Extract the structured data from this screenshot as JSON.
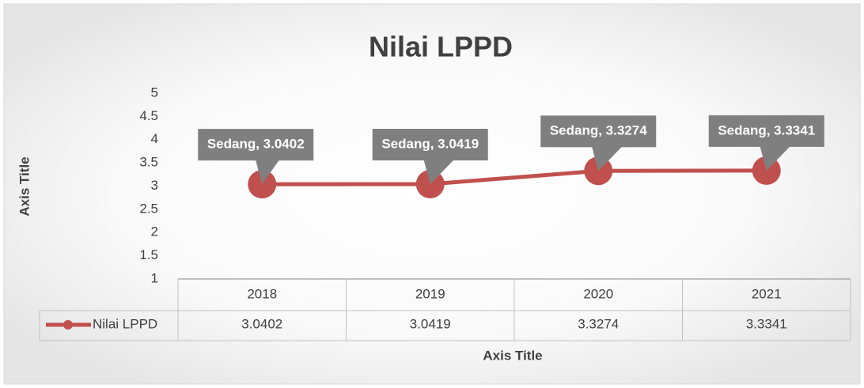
{
  "chart_data": {
    "type": "line",
    "title": "Nilai LPPD",
    "x_label": "Axis Title",
    "y_label": "Axis Title",
    "categories": [
      "2018",
      "2019",
      "2020",
      "2021"
    ],
    "series": [
      {
        "name": "Nilai LPPD",
        "color": "#c0504d",
        "values": [
          3.0402,
          3.0419,
          3.3274,
          3.3341
        ],
        "value_labels": [
          "Sedang, 3.0402",
          "Sedang, 3.0419",
          "Sedang, 3.3274",
          "Sedang, 3.3341"
        ]
      }
    ],
    "ylim": [
      1,
      5
    ],
    "yticks": [
      1,
      1.5,
      2,
      2.5,
      3,
      3.5,
      4,
      4.5,
      5
    ]
  }
}
